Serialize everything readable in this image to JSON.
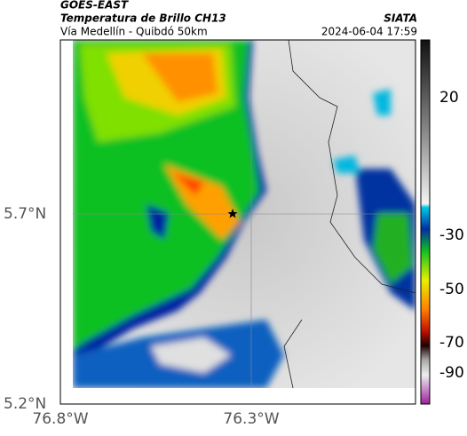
{
  "header": {
    "satellite": "GOES-EAST",
    "product": "Temperatura de Brillo CH13",
    "route": "Vía Medellín - Quibdó 50km",
    "organization": "SIATA",
    "timestamp": "2024-06-04 17:59"
  },
  "axes": {
    "latitude_labels": [
      "5.7°N",
      "5.2°N"
    ],
    "longitude_labels": [
      "76.8°W",
      "76.3°W"
    ]
  },
  "colorbar": {
    "tick_labels": [
      "20",
      "-30",
      "-50",
      "-70",
      "-90"
    ]
  }
}
